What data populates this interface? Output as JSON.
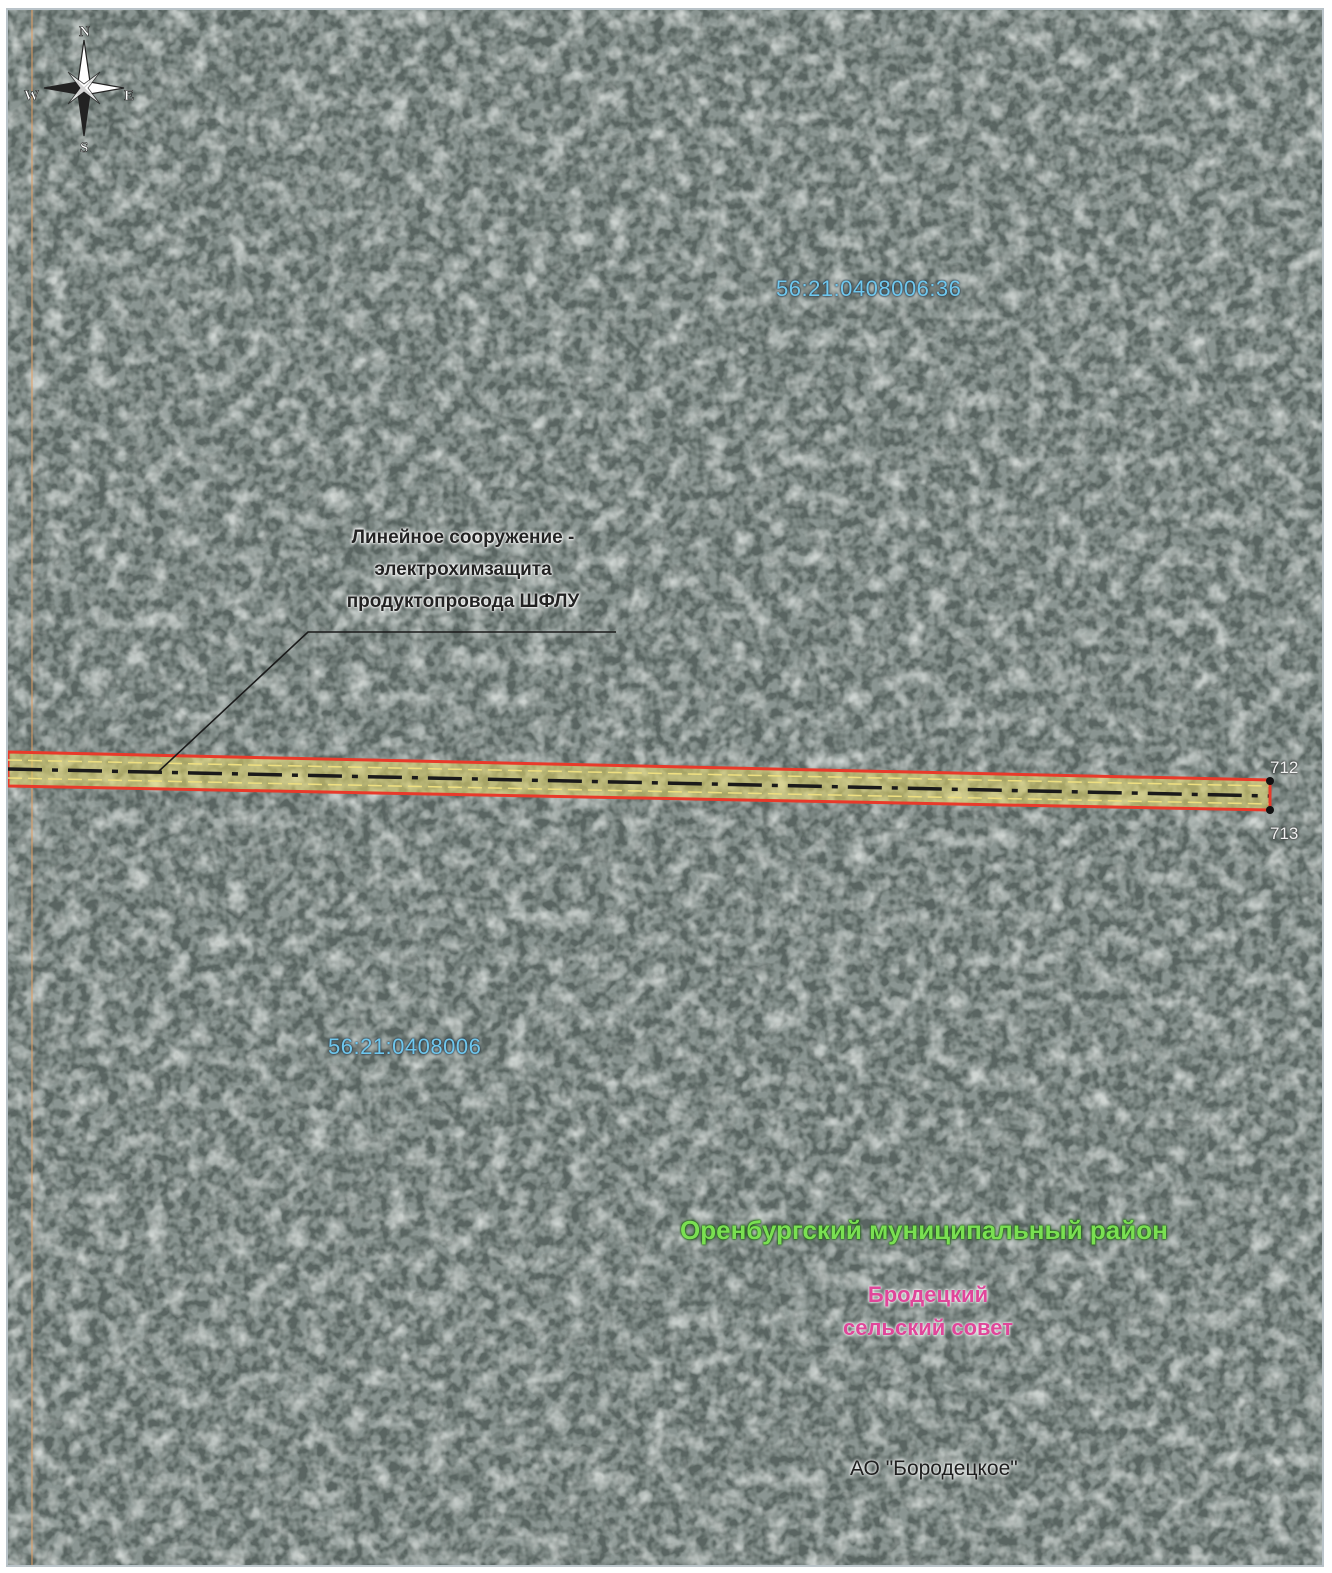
{
  "compass": {
    "north": "N",
    "south": "S",
    "east": "E",
    "west": "W"
  },
  "parcels": {
    "upper": "56:21:0408006:36",
    "lower": "56:21:0408006"
  },
  "annotation": {
    "line1": "Линейное сооружение -",
    "line2": "электрохимзащита",
    "line3": "продуктопровода ШФЛУ"
  },
  "points": {
    "p712": "712",
    "p713": "713"
  },
  "district": "Оренбургский муниципальный район",
  "council": {
    "line1": "Бродецкий",
    "line2": "сельский совет"
  },
  "organization": "АО \"Бородецкое\"",
  "colors": {
    "corridor_border": "#e83a2a",
    "corridor_fill": "#e8d86a",
    "pipeline": "#1a1a1a",
    "parcel_label": "#6ec7ee",
    "district_label": "#7ae052",
    "council_label": "#e0469a"
  }
}
